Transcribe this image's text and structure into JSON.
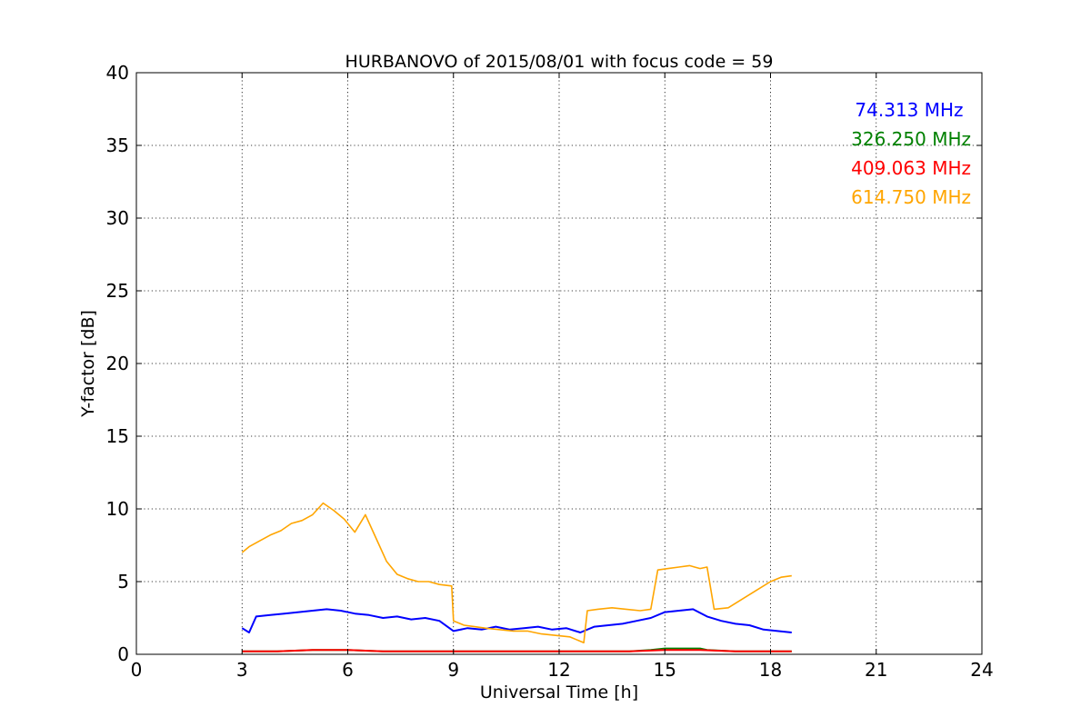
{
  "chart_data": {
    "type": "line",
    "title": "HURBANOVO of 2015/08/01 with focus code = 59",
    "xlabel": "Universal Time [h]",
    "ylabel": "Y-factor [dB]",
    "xlim": [
      0,
      24
    ],
    "ylim": [
      0,
      40
    ],
    "xticks": [
      0,
      3,
      6,
      9,
      12,
      15,
      18,
      21,
      24
    ],
    "yticks": [
      0,
      5,
      10,
      15,
      20,
      25,
      30,
      35,
      40
    ],
    "grid": true,
    "legend_position": "top-right",
    "series": [
      {
        "name": "74.313 MHz",
        "color": "#0000ff",
        "x": [
          3.0,
          3.2,
          3.4,
          3.8,
          4.2,
          4.6,
          5.0,
          5.4,
          5.8,
          6.2,
          6.6,
          7.0,
          7.4,
          7.8,
          8.2,
          8.6,
          9.0,
          9.4,
          9.8,
          10.2,
          10.6,
          11.0,
          11.4,
          11.8,
          12.2,
          12.6,
          13.0,
          13.4,
          13.8,
          14.2,
          14.6,
          15.0,
          15.4,
          15.8,
          16.2,
          16.6,
          17.0,
          17.4,
          17.8,
          18.2,
          18.6
        ],
        "values": [
          1.8,
          1.5,
          2.6,
          2.7,
          2.8,
          2.9,
          3.0,
          3.1,
          3.0,
          2.8,
          2.7,
          2.5,
          2.6,
          2.4,
          2.5,
          2.3,
          1.6,
          1.8,
          1.7,
          1.9,
          1.7,
          1.8,
          1.9,
          1.7,
          1.8,
          1.5,
          1.9,
          2.0,
          2.1,
          2.3,
          2.5,
          2.9,
          3.0,
          3.1,
          2.6,
          2.3,
          2.1,
          2.0,
          1.7,
          1.6,
          1.5
        ]
      },
      {
        "name": "326.250 MHz",
        "color": "#008000",
        "x": [
          3.0,
          4.0,
          5.0,
          6.0,
          7.0,
          8.0,
          9.0,
          10.0,
          11.0,
          12.0,
          13.0,
          14.0,
          14.6,
          15.0,
          15.5,
          16.0,
          16.2,
          17.0,
          18.0,
          18.6
        ],
        "values": [
          0.2,
          0.2,
          0.3,
          0.3,
          0.2,
          0.2,
          0.2,
          0.2,
          0.2,
          0.2,
          0.2,
          0.2,
          0.3,
          0.4,
          0.4,
          0.4,
          0.3,
          0.2,
          0.2,
          0.2
        ]
      },
      {
        "name": "409.063 MHz",
        "color": "#ff0000",
        "x": [
          3.0,
          4.0,
          5.0,
          6.0,
          7.0,
          8.0,
          9.0,
          10.0,
          11.0,
          12.0,
          13.0,
          14.0,
          15.0,
          16.0,
          17.0,
          18.0,
          18.6
        ],
        "values": [
          0.2,
          0.2,
          0.3,
          0.3,
          0.2,
          0.2,
          0.2,
          0.2,
          0.2,
          0.2,
          0.2,
          0.2,
          0.3,
          0.3,
          0.2,
          0.2,
          0.2
        ]
      },
      {
        "name": "614.750 MHz",
        "color": "#ffa500",
        "x": [
          3.0,
          3.2,
          3.5,
          3.8,
          4.1,
          4.4,
          4.7,
          5.0,
          5.3,
          5.6,
          5.9,
          6.2,
          6.5,
          6.8,
          7.1,
          7.4,
          7.7,
          8.0,
          8.3,
          8.6,
          8.95,
          9.0,
          9.3,
          9.6,
          9.9,
          10.3,
          10.7,
          11.1,
          11.5,
          11.9,
          12.3,
          12.7,
          12.8,
          13.1,
          13.5,
          13.9,
          14.3,
          14.6,
          14.8,
          15.1,
          15.4,
          15.7,
          16.0,
          16.2,
          16.4,
          16.8,
          17.2,
          17.6,
          18.0,
          18.3,
          18.6
        ],
        "values": [
          7.0,
          7.4,
          7.8,
          8.2,
          8.5,
          9.0,
          9.2,
          9.6,
          10.4,
          9.9,
          9.3,
          8.4,
          9.6,
          8.0,
          6.4,
          5.5,
          5.2,
          5.0,
          5.0,
          4.8,
          4.7,
          2.3,
          2.0,
          1.9,
          1.8,
          1.7,
          1.6,
          1.6,
          1.4,
          1.3,
          1.2,
          0.8,
          3.0,
          3.1,
          3.2,
          3.1,
          3.0,
          3.1,
          5.8,
          5.9,
          6.0,
          6.1,
          5.9,
          6.0,
          3.1,
          3.2,
          3.8,
          4.4,
          5.0,
          5.3,
          5.4
        ]
      }
    ]
  }
}
